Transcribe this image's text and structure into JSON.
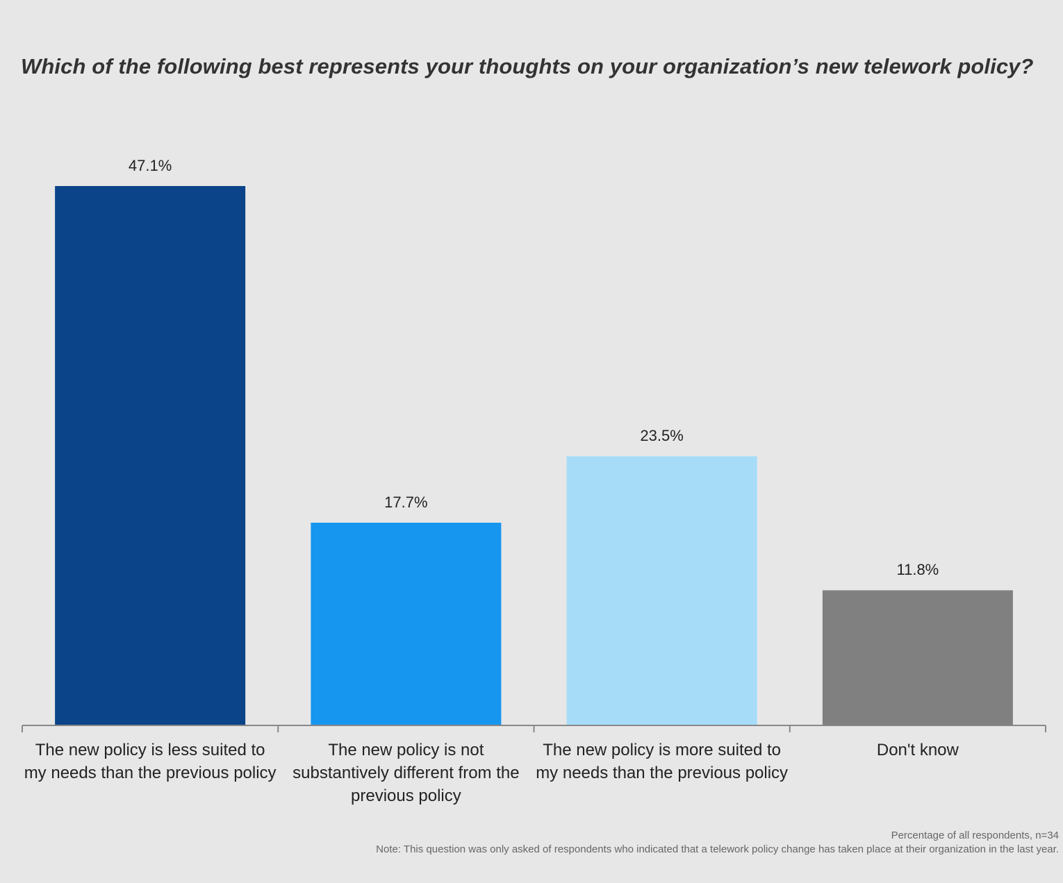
{
  "chart_data": {
    "type": "bar",
    "title": "Which of the following best represents your thoughts on your organization’s new telework policy?",
    "categories": [
      "The new policy is less suited to my needs than the previous policy",
      "The new policy is not substantively different from the previous policy",
      "The new policy is more suited to my needs than the previous policy",
      "Don't know"
    ],
    "values": [
      47.1,
      17.7,
      23.5,
      11.8
    ],
    "data_labels": [
      "47.1%",
      "17.7%",
      "23.5%",
      "11.8%"
    ],
    "colors": [
      "#0b4488",
      "#1696ef",
      "#a6dcf8",
      "#808080"
    ],
    "xlabel": "",
    "ylabel": "",
    "ylim": [
      0,
      50
    ],
    "grid": false,
    "legend": "none",
    "unit": "%"
  },
  "footer": {
    "base_note": "Percentage of all respondents, n=34",
    "note": "Note: This question was only asked of respondents who indicated that a telework policy change has taken place at their organization in the last year."
  }
}
